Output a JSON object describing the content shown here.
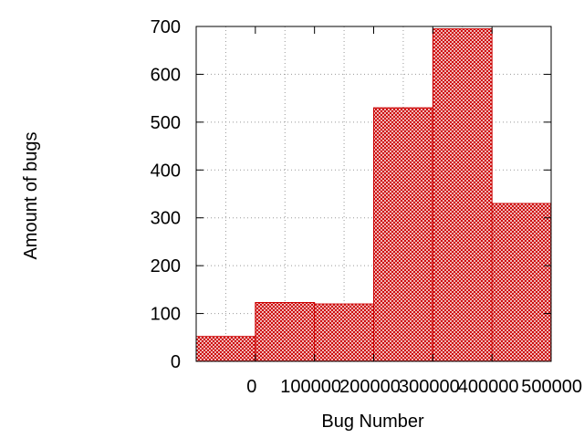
{
  "chart_data": {
    "type": "bar",
    "title": "",
    "xlabel": "Bug Number",
    "ylabel": "Amount of bugs",
    "categories": [
      "0",
      "100000",
      "200000",
      "300000",
      "400000",
      "500000"
    ],
    "x_tick_labels": [
      "0",
      "100000",
      "200000",
      "300000",
      "400000",
      "500000"
    ],
    "y_tick_labels": [
      "0",
      "100",
      "200",
      "300",
      "400",
      "500",
      "600",
      "700"
    ],
    "values": [
      52,
      123,
      120,
      530,
      695,
      330
    ],
    "ylim": [
      0,
      700
    ],
    "grid": true,
    "legend": "none",
    "bar_fill_pattern": "crosshatch",
    "colors": {
      "bar_fill": "#dd8a8a",
      "bar_pattern": "#cc0000",
      "bar_edge": "#cc0000",
      "grid": "#999999",
      "axis": "#000000"
    }
  }
}
